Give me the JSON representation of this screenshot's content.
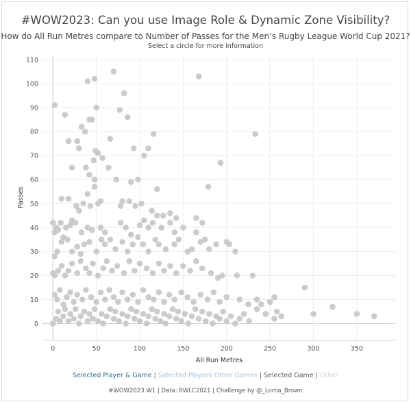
{
  "header": {
    "title": "#WOW2023: Can you use Image Role & Dynamic Zone Visibility?",
    "subtitle": "How do All Run Metres compare to Number of Passes for the Men’s Rugby League World Cup 2021?",
    "instruction": "Select a circle for more information"
  },
  "legend": {
    "separator": "|",
    "items": [
      {
        "label": "Selected Player & Game",
        "color": "#2d6a8f"
      },
      {
        "label": "Selected Players Other Games",
        "color": "#9fc6dd"
      },
      {
        "label": "Selected Game",
        "color": "#555555"
      },
      {
        "label": "Other",
        "color": "#d3d3d3"
      }
    ]
  },
  "footer": {
    "credit": "#WOW2023 W1 | Data: RWLC2021 | Challenge by @_Lorna_Brown"
  },
  "chart_data": {
    "type": "scatter",
    "xlabel": "All Run Metres",
    "ylabel": "Passes",
    "xlim": [
      -12,
      395
    ],
    "ylim": [
      -7,
      112
    ],
    "xticks": [
      0,
      50,
      100,
      150,
      200,
      250,
      300,
      350
    ],
    "yticks": [
      0,
      10,
      20,
      30,
      40,
      50,
      60,
      70,
      80,
      90,
      100,
      110
    ],
    "grid": true,
    "point_color": "#c8c8c8",
    "points": [
      [
        2,
        91
      ],
      [
        14,
        87
      ],
      [
        40,
        101
      ],
      [
        48,
        102
      ],
      [
        70,
        105
      ],
      [
        82,
        96
      ],
      [
        168,
        103
      ],
      [
        33,
        82
      ],
      [
        37,
        80
      ],
      [
        42,
        85
      ],
      [
        45,
        85
      ],
      [
        50,
        90
      ],
      [
        77,
        89
      ],
      [
        86,
        86
      ],
      [
        116,
        79
      ],
      [
        233,
        79
      ],
      [
        28,
        76
      ],
      [
        18,
        76
      ],
      [
        66,
        77
      ],
      [
        30,
        73
      ],
      [
        49,
        72
      ],
      [
        52,
        71
      ],
      [
        93,
        73
      ],
      [
        110,
        73
      ],
      [
        47,
        68
      ],
      [
        57,
        69
      ],
      [
        105,
        70
      ],
      [
        193,
        67
      ],
      [
        22,
        65
      ],
      [
        38,
        65
      ],
      [
        64,
        65
      ],
      [
        42,
        62
      ],
      [
        48,
        60
      ],
      [
        73,
        60
      ],
      [
        90,
        59
      ],
      [
        98,
        60
      ],
      [
        120,
        56
      ],
      [
        179,
        57
      ],
      [
        18,
        52
      ],
      [
        10,
        52
      ],
      [
        40,
        54
      ],
      [
        48,
        57
      ],
      [
        35,
        50
      ],
      [
        43,
        49
      ],
      [
        52,
        50
      ],
      [
        55,
        51
      ],
      [
        27,
        49
      ],
      [
        30,
        47
      ],
      [
        78,
        49
      ],
      [
        80,
        51
      ],
      [
        88,
        51
      ],
      [
        95,
        49
      ],
      [
        102,
        50
      ],
      [
        114,
        47
      ],
      [
        120,
        45
      ],
      [
        127,
        45
      ],
      [
        135,
        46
      ],
      [
        142,
        44
      ],
      [
        165,
        44
      ],
      [
        172,
        42
      ],
      [
        0,
        42
      ],
      [
        2,
        38
      ],
      [
        4,
        40
      ],
      [
        6,
        39
      ],
      [
        9,
        42
      ],
      [
        15,
        40
      ],
      [
        20,
        41
      ],
      [
        22,
        43
      ],
      [
        26,
        42
      ],
      [
        33,
        38
      ],
      [
        40,
        40
      ],
      [
        45,
        39
      ],
      [
        55,
        40
      ],
      [
        60,
        38
      ],
      [
        78,
        42
      ],
      [
        84,
        40
      ],
      [
        90,
        37
      ],
      [
        100,
        41
      ],
      [
        105,
        43
      ],
      [
        110,
        40
      ],
      [
        115,
        42
      ],
      [
        125,
        40
      ],
      [
        135,
        42
      ],
      [
        140,
        38
      ],
      [
        150,
        40
      ],
      [
        165,
        38
      ],
      [
        175,
        35
      ],
      [
        2,
        28
      ],
      [
        5,
        30
      ],
      [
        10,
        34
      ],
      [
        12,
        36
      ],
      [
        17,
        35
      ],
      [
        22,
        30
      ],
      [
        28,
        32
      ],
      [
        32,
        29
      ],
      [
        36,
        33
      ],
      [
        42,
        34
      ],
      [
        50,
        30
      ],
      [
        56,
        35
      ],
      [
        60,
        33
      ],
      [
        66,
        35
      ],
      [
        72,
        31
      ],
      [
        80,
        34
      ],
      [
        86,
        30
      ],
      [
        92,
        33
      ],
      [
        98,
        36
      ],
      [
        104,
        33
      ],
      [
        110,
        30
      ],
      [
        118,
        35
      ],
      [
        122,
        33
      ],
      [
        130,
        31
      ],
      [
        140,
        33
      ],
      [
        145,
        35
      ],
      [
        155,
        30
      ],
      [
        160,
        31
      ],
      [
        170,
        34
      ],
      [
        180,
        31
      ],
      [
        188,
        33
      ],
      [
        200,
        34
      ],
      [
        203,
        33
      ],
      [
        210,
        30
      ],
      [
        0,
        21
      ],
      [
        2,
        20
      ],
      [
        6,
        22
      ],
      [
        10,
        24
      ],
      [
        14,
        20
      ],
      [
        18,
        22
      ],
      [
        22,
        25
      ],
      [
        28,
        21
      ],
      [
        32,
        26
      ],
      [
        38,
        23
      ],
      [
        42,
        21
      ],
      [
        46,
        25
      ],
      [
        52,
        20
      ],
      [
        58,
        23
      ],
      [
        62,
        26
      ],
      [
        68,
        22
      ],
      [
        74,
        24
      ],
      [
        82,
        21
      ],
      [
        88,
        26
      ],
      [
        94,
        22
      ],
      [
        100,
        25
      ],
      [
        108,
        23
      ],
      [
        115,
        21
      ],
      [
        122,
        25
      ],
      [
        128,
        22
      ],
      [
        135,
        24
      ],
      [
        142,
        21
      ],
      [
        150,
        24
      ],
      [
        158,
        22
      ],
      [
        165,
        26
      ],
      [
        172,
        23
      ],
      [
        182,
        21
      ],
      [
        190,
        19
      ],
      [
        195,
        20
      ],
      [
        212,
        20
      ],
      [
        230,
        20
      ],
      [
        2,
        12
      ],
      [
        5,
        10
      ],
      [
        8,
        14
      ],
      [
        12,
        8
      ],
      [
        16,
        11
      ],
      [
        20,
        13
      ],
      [
        24,
        9
      ],
      [
        28,
        12
      ],
      [
        34,
        10
      ],
      [
        38,
        14
      ],
      [
        44,
        11
      ],
      [
        50,
        9
      ],
      [
        55,
        13
      ],
      [
        60,
        10
      ],
      [
        65,
        14
      ],
      [
        70,
        11
      ],
      [
        75,
        9
      ],
      [
        80,
        13
      ],
      [
        86,
        10
      ],
      [
        92,
        12
      ],
      [
        98,
        9
      ],
      [
        104,
        14
      ],
      [
        110,
        11
      ],
      [
        116,
        10
      ],
      [
        122,
        13
      ],
      [
        128,
        9
      ],
      [
        134,
        12
      ],
      [
        140,
        10
      ],
      [
        148,
        13
      ],
      [
        155,
        11
      ],
      [
        162,
        9
      ],
      [
        170,
        12
      ],
      [
        178,
        10
      ],
      [
        185,
        13
      ],
      [
        192,
        9
      ],
      [
        200,
        11
      ],
      [
        215,
        10
      ],
      [
        225,
        8
      ],
      [
        235,
        10
      ],
      [
        240,
        8
      ],
      [
        250,
        9
      ],
      [
        255,
        11
      ],
      [
        258,
        5
      ],
      [
        263,
        3
      ],
      [
        290,
        15
      ],
      [
        300,
        4
      ],
      [
        322,
        7
      ],
      [
        350,
        4
      ],
      [
        370,
        3
      ],
      [
        235,
        6
      ],
      [
        245,
        4
      ],
      [
        255,
        2
      ],
      [
        0,
        0
      ],
      [
        4,
        2
      ],
      [
        6,
        5
      ],
      [
        8,
        1
      ],
      [
        12,
        3
      ],
      [
        14,
        6
      ],
      [
        18,
        1
      ],
      [
        20,
        4
      ],
      [
        24,
        2
      ],
      [
        26,
        6
      ],
      [
        30,
        0
      ],
      [
        32,
        3
      ],
      [
        36,
        5
      ],
      [
        40,
        1
      ],
      [
        42,
        4
      ],
      [
        46,
        2
      ],
      [
        48,
        6
      ],
      [
        52,
        1
      ],
      [
        56,
        4
      ],
      [
        58,
        0
      ],
      [
        62,
        3
      ],
      [
        66,
        6
      ],
      [
        70,
        2
      ],
      [
        72,
        5
      ],
      [
        76,
        1
      ],
      [
        80,
        4
      ],
      [
        84,
        0
      ],
      [
        86,
        3
      ],
      [
        90,
        6
      ],
      [
        94,
        2
      ],
      [
        96,
        5
      ],
      [
        100,
        1
      ],
      [
        104,
        4
      ],
      [
        108,
        0
      ],
      [
        110,
        3
      ],
      [
        114,
        6
      ],
      [
        118,
        2
      ],
      [
        120,
        5
      ],
      [
        124,
        1
      ],
      [
        128,
        4
      ],
      [
        130,
        0
      ],
      [
        134,
        3
      ],
      [
        138,
        6
      ],
      [
        142,
        2
      ],
      [
        144,
        5
      ],
      [
        148,
        1
      ],
      [
        152,
        4
      ],
      [
        156,
        0
      ],
      [
        160,
        3
      ],
      [
        164,
        6
      ],
      [
        168,
        2
      ],
      [
        172,
        5
      ],
      [
        176,
        1
      ],
      [
        180,
        4
      ],
      [
        184,
        0
      ],
      [
        188,
        3
      ],
      [
        192,
        2
      ],
      [
        196,
        5
      ],
      [
        200,
        1
      ],
      [
        205,
        3
      ],
      [
        210,
        0
      ],
      [
        215,
        2
      ],
      [
        220,
        4
      ],
      [
        226,
        1
      ]
    ]
  }
}
